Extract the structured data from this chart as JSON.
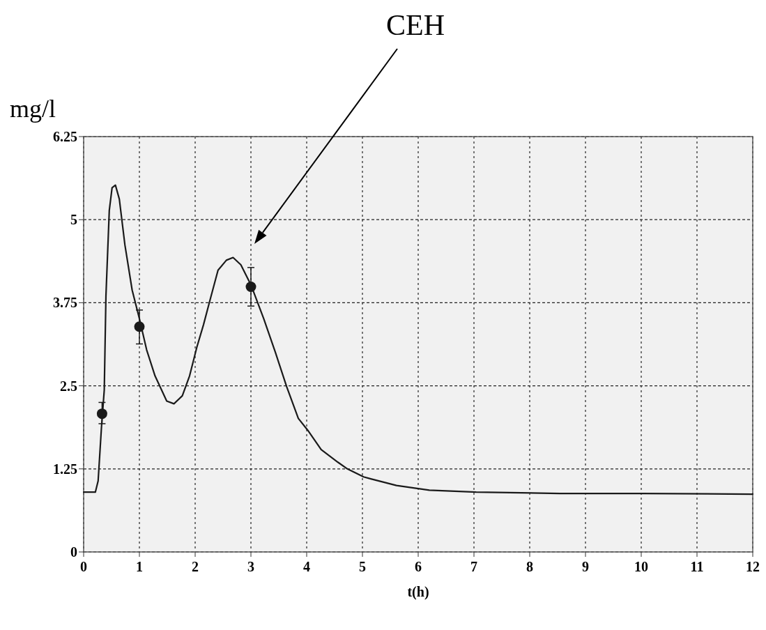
{
  "chart_data": {
    "type": "line",
    "xlabel": "t(h)",
    "ylabel": "mg/l",
    "annotations": [
      "CEH"
    ],
    "xlim": [
      0,
      12
    ],
    "ylim": [
      0,
      6.25
    ],
    "xticks": [
      0,
      1,
      2,
      3,
      4,
      5,
      6,
      7,
      8,
      9,
      10,
      11,
      12
    ],
    "yticks": [
      0,
      1.25,
      2.5,
      3.75,
      5,
      6.25
    ],
    "grid": true,
    "series": [
      {
        "color": "#1a1a1a",
        "marker": "none",
        "x": [
          0,
          0.21,
          0.26,
          0.32,
          0.37,
          0.4,
          0.46,
          0.51,
          0.57,
          0.64,
          0.74,
          0.87,
          1,
          1.13,
          1.28,
          1.49,
          1.62,
          1.77,
          1.9,
          2.03,
          2.15,
          2.26,
          2.41,
          2.56,
          2.68,
          2.82,
          3,
          3.23,
          3.44,
          3.64,
          3.85,
          4.02,
          4.26,
          4.56,
          4.73,
          5.02,
          5.15,
          5.61,
          6.2,
          7.04,
          8.54,
          10,
          12
        ],
        "values": [
          0.9,
          0.9,
          1.07,
          1.88,
          2.44,
          3.85,
          5.14,
          5.48,
          5.52,
          5.31,
          4.62,
          3.94,
          3.51,
          3.04,
          2.65,
          2.27,
          2.23,
          2.35,
          2.65,
          3.08,
          3.42,
          3.77,
          4.24,
          4.39,
          4.43,
          4.32,
          4.02,
          3.51,
          3.0,
          2.49,
          2.01,
          1.83,
          1.54,
          1.35,
          1.25,
          1.13,
          1.1,
          1.0,
          0.93,
          0.9,
          0.88,
          0.88,
          0.87
        ]
      },
      {
        "type": "scatter",
        "color": "#1a1a1a",
        "marker": "circle",
        "x": [
          0.33,
          1,
          3
        ],
        "values": [
          2.08,
          3.39,
          3.99
        ],
        "errors": [
          [
            1.93,
            2.25
          ],
          [
            3.13,
            3.64
          ],
          [
            3.7,
            4.28
          ]
        ]
      }
    ]
  }
}
